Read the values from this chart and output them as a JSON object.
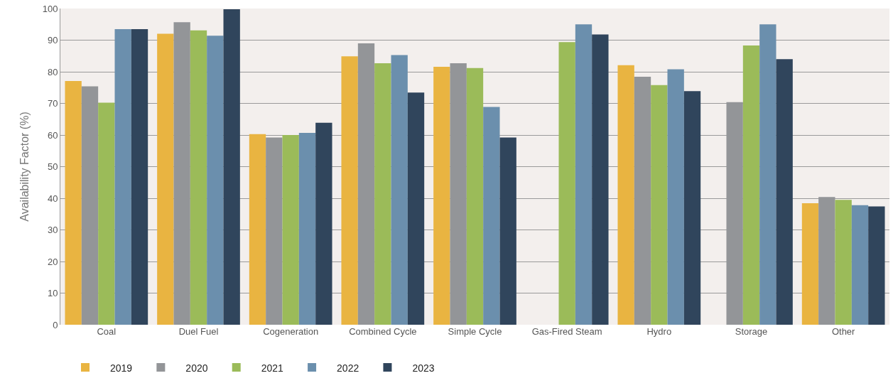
{
  "chart_data": {
    "type": "bar",
    "ylabel": "Availability Factor (%)",
    "categories": [
      "Coal",
      "Duel Fuel",
      "Cogeneration",
      "Combined Cycle",
      "Simple Cycle",
      "Gas-Fired Steam",
      "Hydro",
      "Storage",
      "Other"
    ],
    "series": [
      {
        "name": "2019",
        "color": "#e9b441",
        "values": [
          77.1,
          92.0,
          60.3,
          84.9,
          81.6,
          null,
          82.1,
          null,
          38.4
        ]
      },
      {
        "name": "2020",
        "color": "#939598",
        "values": [
          75.4,
          95.7,
          59.2,
          89.0,
          82.7,
          null,
          78.4,
          70.4,
          40.4
        ]
      },
      {
        "name": "2021",
        "color": "#9bbb59",
        "values": [
          70.2,
          93.1,
          60.0,
          82.7,
          81.2,
          89.4,
          75.8,
          88.3,
          39.5
        ]
      },
      {
        "name": "2022",
        "color": "#6b8fad",
        "values": [
          93.5,
          91.4,
          60.7,
          85.3,
          68.9,
          95.0,
          80.8,
          95.0,
          37.8
        ]
      },
      {
        "name": "2023",
        "color": "#30455c",
        "values": [
          93.5,
          99.8,
          63.9,
          73.4,
          59.2,
          91.8,
          73.9,
          84.0,
          37.4
        ]
      }
    ],
    "ylim": [
      0,
      100
    ],
    "yticks": [
      0,
      10,
      20,
      30,
      40,
      50,
      60,
      70,
      80,
      90,
      100
    ],
    "grid": "y",
    "legend": "bottom left"
  }
}
